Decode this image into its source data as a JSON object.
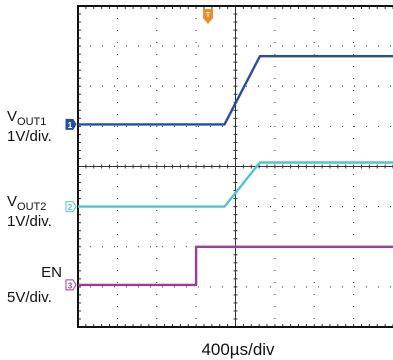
{
  "chart_data": {
    "type": "line",
    "title": "",
    "timebase": "400µs/div",
    "xlabel": "400µs/div",
    "x_divisions": 8,
    "y_divisions": 8,
    "xlim": [
      0,
      8
    ],
    "ylim": [
      0,
      8
    ],
    "grid": true,
    "trigger_marker": "T",
    "series": [
      {
        "name": "V_OUT1",
        "label_main": "V",
        "label_sub": "OUT1",
        "scale": "1V/div.",
        "channel": "1",
        "color": "#2a4f9a",
        "x": [
          0,
          3.72,
          4.62,
          8
        ],
        "y": [
          5.05,
          5.05,
          6.75,
          6.75
        ]
      },
      {
        "name": "V_OUT2",
        "label_main": "V",
        "label_sub": "OUT2",
        "scale": "1V/div.",
        "channel": "2",
        "color": "#55c2d2",
        "x": [
          0,
          3.72,
          4.62,
          8
        ],
        "y": [
          3.0,
          3.0,
          4.1,
          4.1
        ]
      },
      {
        "name": "EN",
        "label_main": "EN",
        "label_sub": "",
        "scale": "5V/div.",
        "channel": "3",
        "color": "#9b3e9b",
        "x": [
          0,
          3.0,
          3.0,
          8
        ],
        "y": [
          1.05,
          1.05,
          2.0,
          2.0
        ]
      }
    ]
  }
}
